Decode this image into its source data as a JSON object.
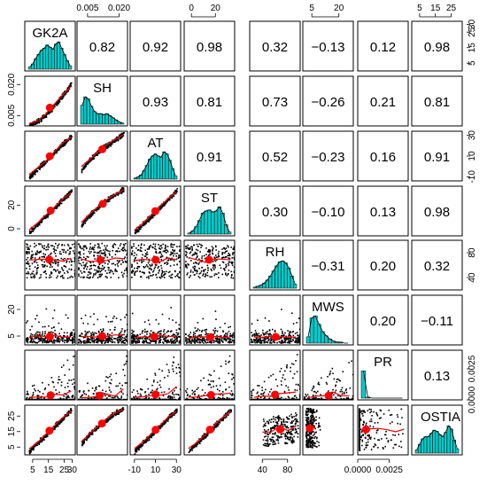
{
  "chart_data": {
    "type": "scatter",
    "variables": [
      "GK2A",
      "SH",
      "AT",
      "ST",
      "RH",
      "MWS",
      "PR",
      "OSTIA"
    ],
    "correlations": [
      [
        null,
        "0.82",
        "0.92",
        "0.98",
        "0.32",
        "−0.13",
        "0.12",
        "0.98"
      ],
      [
        null,
        null,
        "0.93",
        "0.81",
        "0.73",
        "−0.26",
        "0.21",
        "0.81"
      ],
      [
        null,
        null,
        null,
        "0.91",
        "0.52",
        "−0.23",
        "0.16",
        "0.91"
      ],
      [
        null,
        null,
        null,
        null,
        "0.30",
        "−0.10",
        "0.13",
        "0.98"
      ],
      [
        null,
        null,
        null,
        null,
        null,
        "−0.31",
        "0.20",
        "0.32"
      ],
      [
        null,
        null,
        null,
        null,
        null,
        null,
        "0.20",
        "−0.11"
      ],
      [
        null,
        null,
        null,
        null,
        null,
        null,
        null,
        "0.13"
      ],
      [
        null,
        null,
        null,
        null,
        null,
        null,
        null,
        null
      ]
    ],
    "ticks": {
      "GK2A": [
        "5",
        "15",
        "25",
        "30"
      ],
      "SH": [
        "0.005",
        "0.020"
      ],
      "AT": [
        "-10",
        "10",
        "30"
      ],
      "ST": [
        "0",
        "20"
      ],
      "RH": [
        "40",
        "80"
      ],
      "MWS": [
        "5",
        "20"
      ],
      "PR": [
        "0.0000",
        "0.0025"
      ],
      "OSTIA": [
        "5",
        "15",
        "25"
      ]
    },
    "tick_values": {
      "GK2A": [
        5,
        15,
        25,
        30
      ],
      "SH": [
        0.005,
        0.02
      ],
      "AT": [
        -10,
        10,
        30
      ],
      "ST": [
        0,
        20
      ],
      "RH": [
        40,
        80
      ],
      "MWS": [
        5,
        20
      ],
      "PR": [
        0,
        0.0025
      ],
      "OSTIA": [
        5,
        15,
        25
      ]
    },
    "ranges": {
      "GK2A": [
        0,
        32
      ],
      "SH": [
        0,
        0.024
      ],
      "AT": [
        -14,
        34
      ],
      "ST": [
        -6,
        36
      ],
      "RH": [
        20,
        100
      ],
      "MWS": [
        0,
        28
      ],
      "PR": [
        0,
        0.004
      ],
      "OSTIA": [
        0,
        32
      ]
    },
    "histograms": {
      "GK2A": [
        2,
        5,
        10,
        14,
        18,
        20,
        23,
        21,
        19,
        24,
        26,
        20,
        14,
        8,
        3
      ],
      "SH": [
        18,
        26,
        24,
        17,
        12,
        10,
        10,
        9,
        10,
        8,
        6,
        4,
        2,
        1
      ],
      "AT": [
        1,
        2,
        4,
        8,
        13,
        19,
        22,
        24,
        22,
        21,
        26,
        24,
        18,
        10,
        3
      ],
      "ST": [
        1,
        3,
        7,
        13,
        20,
        22,
        23,
        21,
        22,
        26,
        20,
        9,
        2
      ],
      "RH": [
        1,
        2,
        3,
        5,
        8,
        12,
        17,
        22,
        26,
        27,
        25,
        20,
        12,
        4
      ],
      "MWS": [
        6,
        24,
        26,
        18,
        11,
        7,
        4,
        2,
        1,
        1,
        0,
        0
      ],
      "PR": [
        28,
        1,
        0,
        0,
        0,
        0,
        0,
        0,
        0,
        0
      ],
      "OSTIA": [
        3,
        8,
        13,
        15,
        15,
        18,
        21,
        20,
        17,
        15,
        19,
        25,
        22,
        12,
        4
      ]
    },
    "xlabel": "",
    "ylabel": "",
    "grid": false
  },
  "colors": {
    "histogram_fill": "#00cccc",
    "scatter_points": "#000000",
    "smoother": "#ff0000"
  }
}
